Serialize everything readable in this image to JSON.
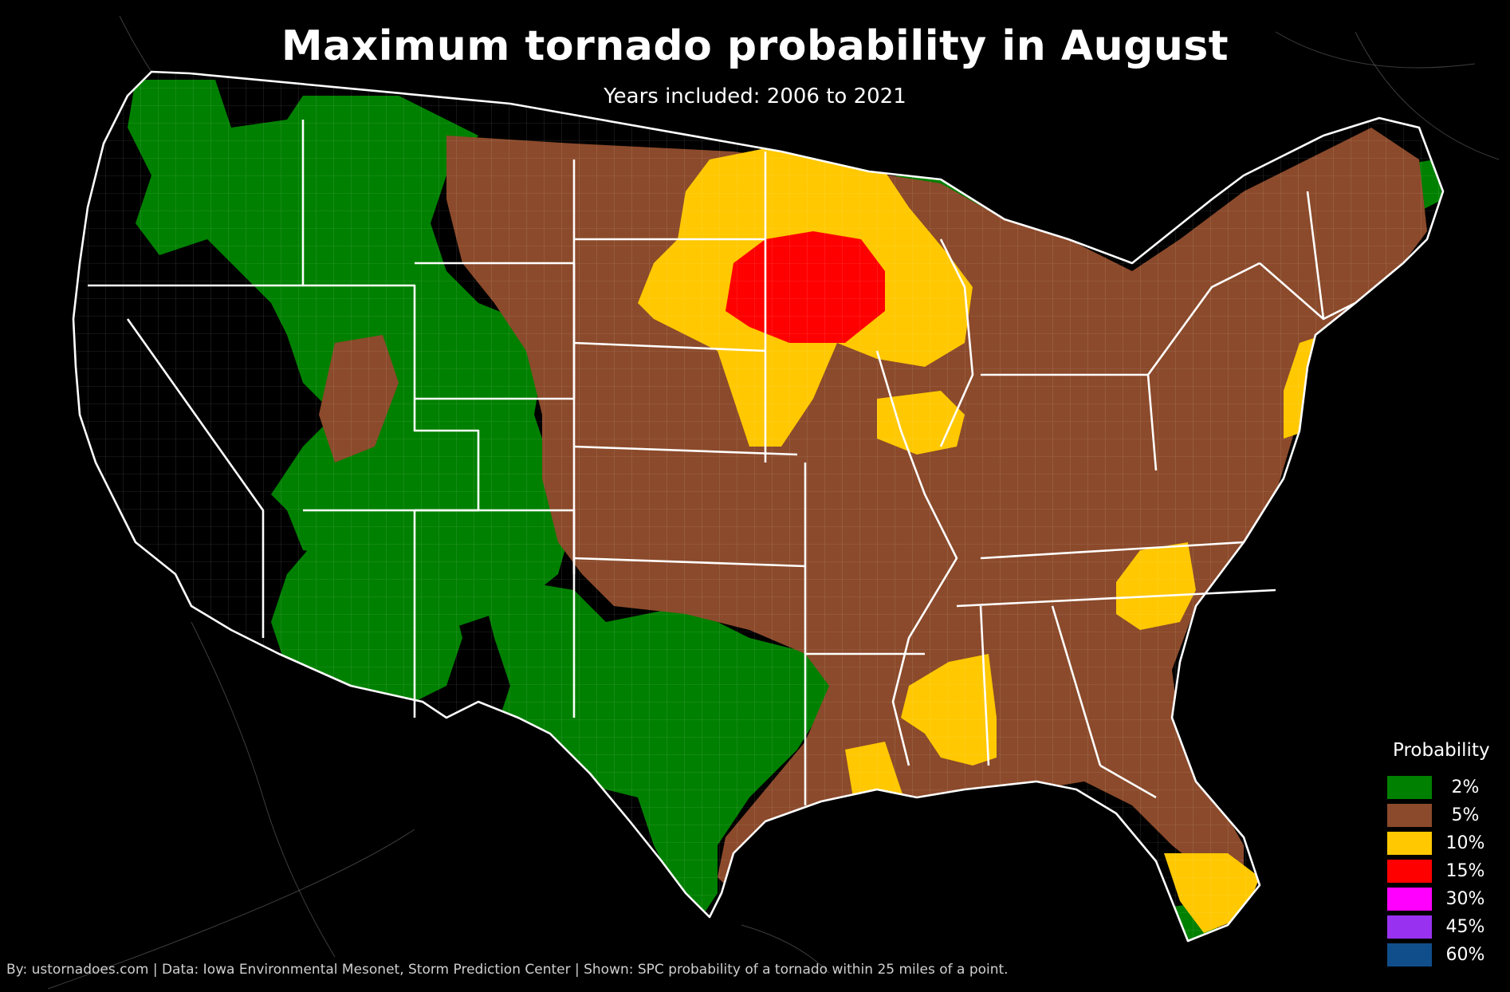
{
  "header": {
    "title": "Maximum tornado probability in August",
    "subtitle": "Years included: 2006 to 2021"
  },
  "legend": {
    "title": "Probability",
    "items": [
      {
        "label": "2%",
        "color": "#008000"
      },
      {
        "label": "5%",
        "color": "#8b4a2b"
      },
      {
        "label": "10%",
        "color": "#ffc800"
      },
      {
        "label": "15%",
        "color": "#ff0000"
      },
      {
        "label": "30%",
        "color": "#ff00ff"
      },
      {
        "label": "45%",
        "color": "#9932f0"
      },
      {
        "label": "60%",
        "color": "#104e8b"
      }
    ]
  },
  "map": {
    "background": "#000000",
    "land_no_risk": "#000000",
    "boundary_color": "#ffffff",
    "region": "Contiguous United States"
  },
  "footer": {
    "credit": "By: ustornadoes.com | Data: Iowa Environmental Mesonet, Storm Prediction Center | Shown: SPC probability of a tornado within 25 miles of a point."
  }
}
